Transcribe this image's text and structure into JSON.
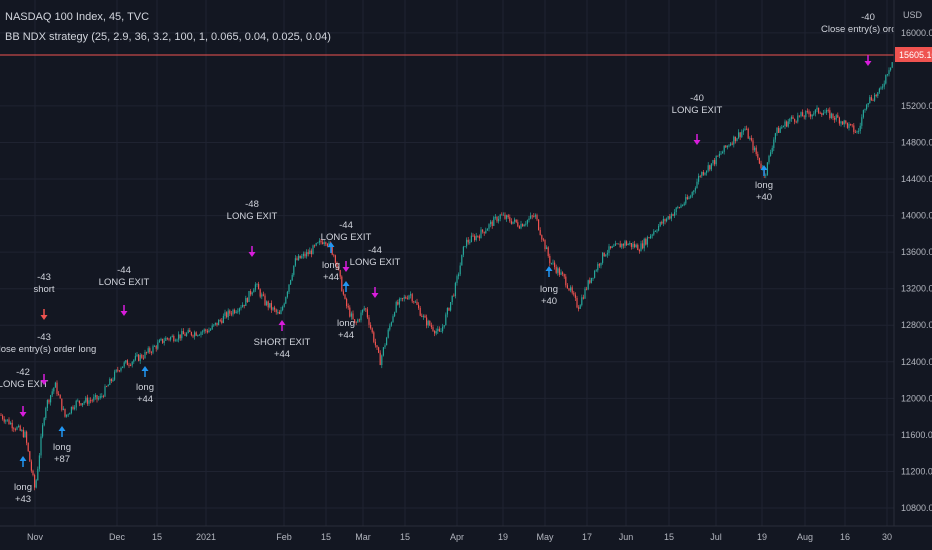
{
  "legend": {
    "symbol_line": "NASDAQ 100 Index, 45, TVC",
    "strategy_line": "BB NDX strategy (25, 2.9, 36, 3.2, 100, 1, 0.065, 0.04, 0.025, 0.04)"
  },
  "colors": {
    "background": "#131722",
    "grid": "#1f2331",
    "up": "#26a69a",
    "down": "#ef5350",
    "exit_marker": "#d81ddc",
    "entry_marker": "#2196f3",
    "short_marker": "#ef5350",
    "price_line": "#ef5350"
  },
  "chart_data": {
    "type": "candlestick",
    "title": "NASDAQ 100 Index, 45, TVC",
    "y_axis_label": "USD",
    "price_label": "15605.10",
    "ylim": [
      10550,
      16050
    ],
    "yticks": [
      "10800.00",
      "11200.00",
      "11600.00",
      "12000.00",
      "12400.00",
      "12800.00",
      "13200.00",
      "13600.00",
      "14000.00",
      "14400.00",
      "14800.00",
      "15200.00",
      "15605.10",
      "16000.00"
    ],
    "xticks": [
      "Nov",
      "Dec",
      "15",
      "2021",
      "Feb",
      "15",
      "Mar",
      "15",
      "Apr",
      "19",
      "May",
      "17",
      "Jun",
      "15",
      "Jul",
      "19",
      "Aug",
      "16",
      "30"
    ],
    "price_path": [
      [
        0,
        11820
      ],
      [
        25,
        11600
      ],
      [
        35,
        11000
      ],
      [
        45,
        11900
      ],
      [
        55,
        12150
      ],
      [
        65,
        11800
      ],
      [
        75,
        11950
      ],
      [
        100,
        12000
      ],
      [
        120,
        12350
      ],
      [
        145,
        12480
      ],
      [
        165,
        12650
      ],
      [
        185,
        12700
      ],
      [
        210,
        12750
      ],
      [
        225,
        12900
      ],
      [
        245,
        13050
      ],
      [
        255,
        13250
      ],
      [
        265,
        13050
      ],
      [
        280,
        12900
      ],
      [
        295,
        13500
      ],
      [
        310,
        13600
      ],
      [
        325,
        13750
      ],
      [
        335,
        13550
      ],
      [
        345,
        13050
      ],
      [
        355,
        12800
      ],
      [
        365,
        13000
      ],
      [
        380,
        12400
      ],
      [
        395,
        13000
      ],
      [
        410,
        13150
      ],
      [
        425,
        12850
      ],
      [
        440,
        12700
      ],
      [
        455,
        13200
      ],
      [
        465,
        13700
      ],
      [
        480,
        13800
      ],
      [
        500,
        14000
      ],
      [
        520,
        13900
      ],
      [
        535,
        14000
      ],
      [
        550,
        13500
      ],
      [
        565,
        13300
      ],
      [
        578,
        13000
      ],
      [
        590,
        13300
      ],
      [
        605,
        13600
      ],
      [
        625,
        13700
      ],
      [
        640,
        13650
      ],
      [
        655,
        13850
      ],
      [
        670,
        14000
      ],
      [
        690,
        14200
      ],
      [
        700,
        14450
      ],
      [
        715,
        14600
      ],
      [
        730,
        14800
      ],
      [
        745,
        14950
      ],
      [
        755,
        14700
      ],
      [
        765,
        14450
      ],
      [
        775,
        14900
      ],
      [
        790,
        15050
      ],
      [
        805,
        15100
      ],
      [
        820,
        15150
      ],
      [
        840,
        15050
      ],
      [
        858,
        14900
      ],
      [
        866,
        15250
      ],
      [
        873,
        15300
      ],
      [
        880,
        15350
      ],
      [
        888,
        15600
      ],
      [
        893,
        15700
      ]
    ],
    "trades": [
      {
        "label": "long",
        "qty": "+43",
        "type": "entry_long"
      },
      {
        "label": "LONG EXIT",
        "qty": "-42",
        "type": "exit_long"
      },
      {
        "label": "long",
        "qty": "+87",
        "type": "entry_long"
      },
      {
        "label": "Close entry(s) order long",
        "qty": "-43",
        "type": "exit_long"
      },
      {
        "label": "short",
        "qty": "-43",
        "type": "entry_short"
      },
      {
        "label": "LONG EXIT",
        "qty": "-44",
        "type": "exit_long"
      },
      {
        "label": "long",
        "qty": "+44",
        "type": "entry_long"
      },
      {
        "label": "LONG EXIT",
        "qty": "-48",
        "type": "exit_long"
      },
      {
        "label": "SHORT EXIT",
        "qty": "+44",
        "type": "exit_short"
      },
      {
        "label": "long",
        "qty": "+44",
        "type": "entry_long"
      },
      {
        "label": "LONG EXIT",
        "qty": "-44",
        "type": "exit_long"
      },
      {
        "label": "long",
        "qty": "+44",
        "type": "entry_long"
      },
      {
        "label": "LONG EXIT",
        "qty": "-44",
        "type": "exit_long"
      },
      {
        "label": "long",
        "qty": "+40",
        "type": "entry_long"
      },
      {
        "label": "LONG EXIT",
        "qty": "-40",
        "type": "exit_long"
      },
      {
        "label": "long",
        "qty": "+40",
        "type": "entry_long"
      },
      {
        "label": "Close entry(s) order lo",
        "qty": "-40",
        "type": "exit_long"
      }
    ]
  }
}
